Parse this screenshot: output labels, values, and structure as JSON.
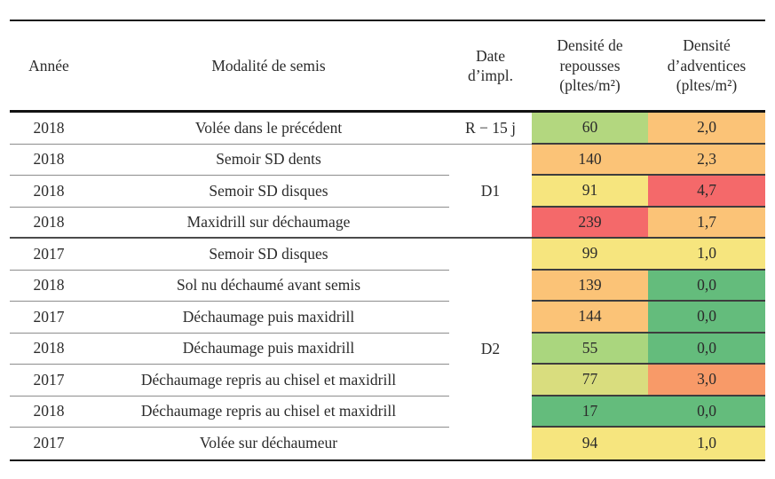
{
  "table": {
    "headers": {
      "year": "Année",
      "modality": "Modalité de semis",
      "date": "Date\nd’impl.",
      "repousses": "Densité de\nrepousses\n(pltes/m²)",
      "adventices": "Densité\nd’adventices\n(pltes/m²)"
    },
    "date_group_labels": [
      "R − 15 j",
      "D1",
      "D2"
    ],
    "rows": [
      {
        "year": "2018",
        "modality": "Volée dans le précédent",
        "date": "R − 15 j",
        "repousses": "60",
        "repousses_color": "#b3d77f",
        "adventices": "2,0",
        "adventices_color": "#fbc377"
      },
      {
        "year": "2018",
        "modality": "Semoir SD dents",
        "date": "",
        "repousses": "140",
        "repousses_color": "#fbc377",
        "adventices": "2,3",
        "adventices_color": "#fbc377"
      },
      {
        "year": "2018",
        "modality": "Semoir SD disques",
        "date": "D1",
        "repousses": "91",
        "repousses_color": "#f6e57e",
        "adventices": "4,7",
        "adventices_color": "#f4696a"
      },
      {
        "year": "2018",
        "modality": "Maxidrill sur déchaumage",
        "date": "",
        "repousses": "239",
        "repousses_color": "#f4696a",
        "adventices": "1,7",
        "adventices_color": "#fbc377"
      },
      {
        "year": "2017",
        "modality": "Semoir SD disques",
        "date": "",
        "repousses": "99",
        "repousses_color": "#f6e57e",
        "adventices": "1,0",
        "adventices_color": "#f6e57e"
      },
      {
        "year": "2018",
        "modality": "Sol nu déchaumé avant semis",
        "date": "",
        "repousses": "139",
        "repousses_color": "#fbc377",
        "adventices": "0,0",
        "adventices_color": "#64bc7c"
      },
      {
        "year": "2017",
        "modality": "Déchaumage puis maxidrill",
        "date": "",
        "repousses": "144",
        "repousses_color": "#fbc377",
        "adventices": "0,0",
        "adventices_color": "#64bc7c"
      },
      {
        "year": "2018",
        "modality": "Déchaumage puis maxidrill",
        "date": "D2",
        "repousses": "55",
        "repousses_color": "#aad67e",
        "adventices": "0,0",
        "adventices_color": "#64bc7c"
      },
      {
        "year": "2017",
        "modality": "Déchaumage repris au chisel et maxidrill",
        "date": "",
        "repousses": "77",
        "repousses_color": "#d9dd7e",
        "adventices": "3,0",
        "adventices_color": "#f89a68"
      },
      {
        "year": "2018",
        "modality": "Déchaumage repris au chisel et maxidrill",
        "date": "",
        "repousses": "17",
        "repousses_color": "#64bc7c",
        "adventices": "0,0",
        "adventices_color": "#64bc7c"
      },
      {
        "year": "2017",
        "modality": "Volée sur déchaumeur",
        "date": "",
        "repousses": "94",
        "repousses_color": "#f6e57e",
        "adventices": "1,0",
        "adventices_color": "#f6e57e"
      }
    ],
    "status_colors": {
      "good_green": "#64bc7c",
      "light_green": "#b3d77f",
      "yellow_green": "#d9dd7e",
      "yellow": "#f6e57e",
      "orange": "#fbc377",
      "dark_orange": "#f89a68",
      "red": "#f4696a"
    }
  }
}
